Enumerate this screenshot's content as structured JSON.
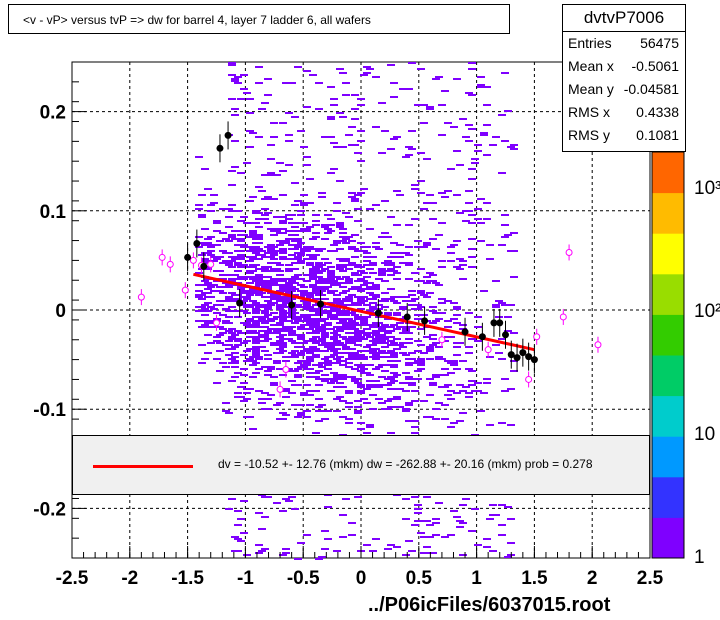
{
  "title": "<v - vP>       versus  tvP =>  dw for barrel 4, layer 7 ladder 6, all wafers",
  "stats": {
    "name": "dvtvP7006",
    "rows": [
      {
        "label": "Entries",
        "value": "56475"
      },
      {
        "label": "Mean x",
        "value": "-0.5061"
      },
      {
        "label": "Mean y",
        "value": "-0.04581"
      },
      {
        "label": "RMS x",
        "value": "0.4338"
      },
      {
        "label": "RMS y",
        "value": "0.1081"
      }
    ]
  },
  "legend": {
    "text": "dv =  -10.52 +- 12.76 (mkm) dw = -262.88 +- 20.16 (mkm) prob = 0.278",
    "line_color": "#ff0000"
  },
  "footer": "../P06icFiles/6037015.root",
  "colorbar": {
    "labels": [
      "1",
      "10",
      "10²",
      "10³"
    ],
    "colors": [
      "#7f00ff",
      "#3333ff",
      "#0099ff",
      "#00cccc",
      "#00cc66",
      "#33cc00",
      "#99dd00",
      "#ffff00",
      "#ffbb00",
      "#ff6600"
    ]
  },
  "chart_data": {
    "type": "scatter",
    "xlim": [
      -2.5,
      2.5
    ],
    "ylim": [
      -0.25,
      0.25
    ],
    "x_ticks": [
      -2.5,
      -2,
      -1.5,
      -1,
      -0.5,
      0,
      0.5,
      1,
      1.5,
      2,
      2.5
    ],
    "x_tick_labels": [
      "-2.5",
      "-2",
      "-1.5",
      "-1",
      "-0.5",
      "0",
      "0.5",
      "1",
      "1.5",
      "2",
      "2.5"
    ],
    "y_ticks": [
      -0.2,
      -0.1,
      0,
      0.1,
      0.2
    ],
    "y_tick_labels": [
      "-0.2",
      "-0.1",
      "0",
      "0.1",
      "0.2"
    ],
    "grid": true,
    "histogram_color": "#7f00ff",
    "fit_line": {
      "color": "#ff0000",
      "x": [
        -1.45,
        1.5
      ],
      "y": [
        0.036,
        -0.04
      ]
    },
    "profile_black": {
      "x": [
        -1.5,
        -1.42,
        -1.36,
        -1.22,
        -1.15,
        -0.6,
        -0.35,
        0.15,
        0.4,
        0.55,
        0.9,
        1.05,
        1.15,
        1.2,
        1.25,
        1.3,
        1.35,
        1.4,
        1.45,
        1.5,
        -1.05
      ],
      "y": [
        0.053,
        0.067,
        0.044,
        0.163,
        0.176,
        0.005,
        0.006,
        -0.003,
        -0.007,
        -0.011,
        -0.022,
        -0.027,
        -0.013,
        -0.013,
        -0.025,
        -0.045,
        -0.048,
        -0.043,
        -0.047,
        -0.05,
        0.007
      ]
    },
    "profile_magenta": {
      "x": [
        -1.9,
        -1.72,
        -1.65,
        -1.52,
        -1.45,
        -1.38,
        -1.3,
        -1.25,
        -0.7,
        0.7,
        1.1,
        1.45,
        1.52,
        1.75,
        1.8,
        2.05,
        -0.65
      ],
      "y": [
        0.013,
        0.053,
        0.046,
        0.02,
        0.05,
        0.045,
        0.046,
        -0.013,
        -0.08,
        -0.03,
        -0.04,
        -0.07,
        -0.027,
        -0.007,
        0.058,
        -0.035,
        -0.06
      ]
    }
  }
}
